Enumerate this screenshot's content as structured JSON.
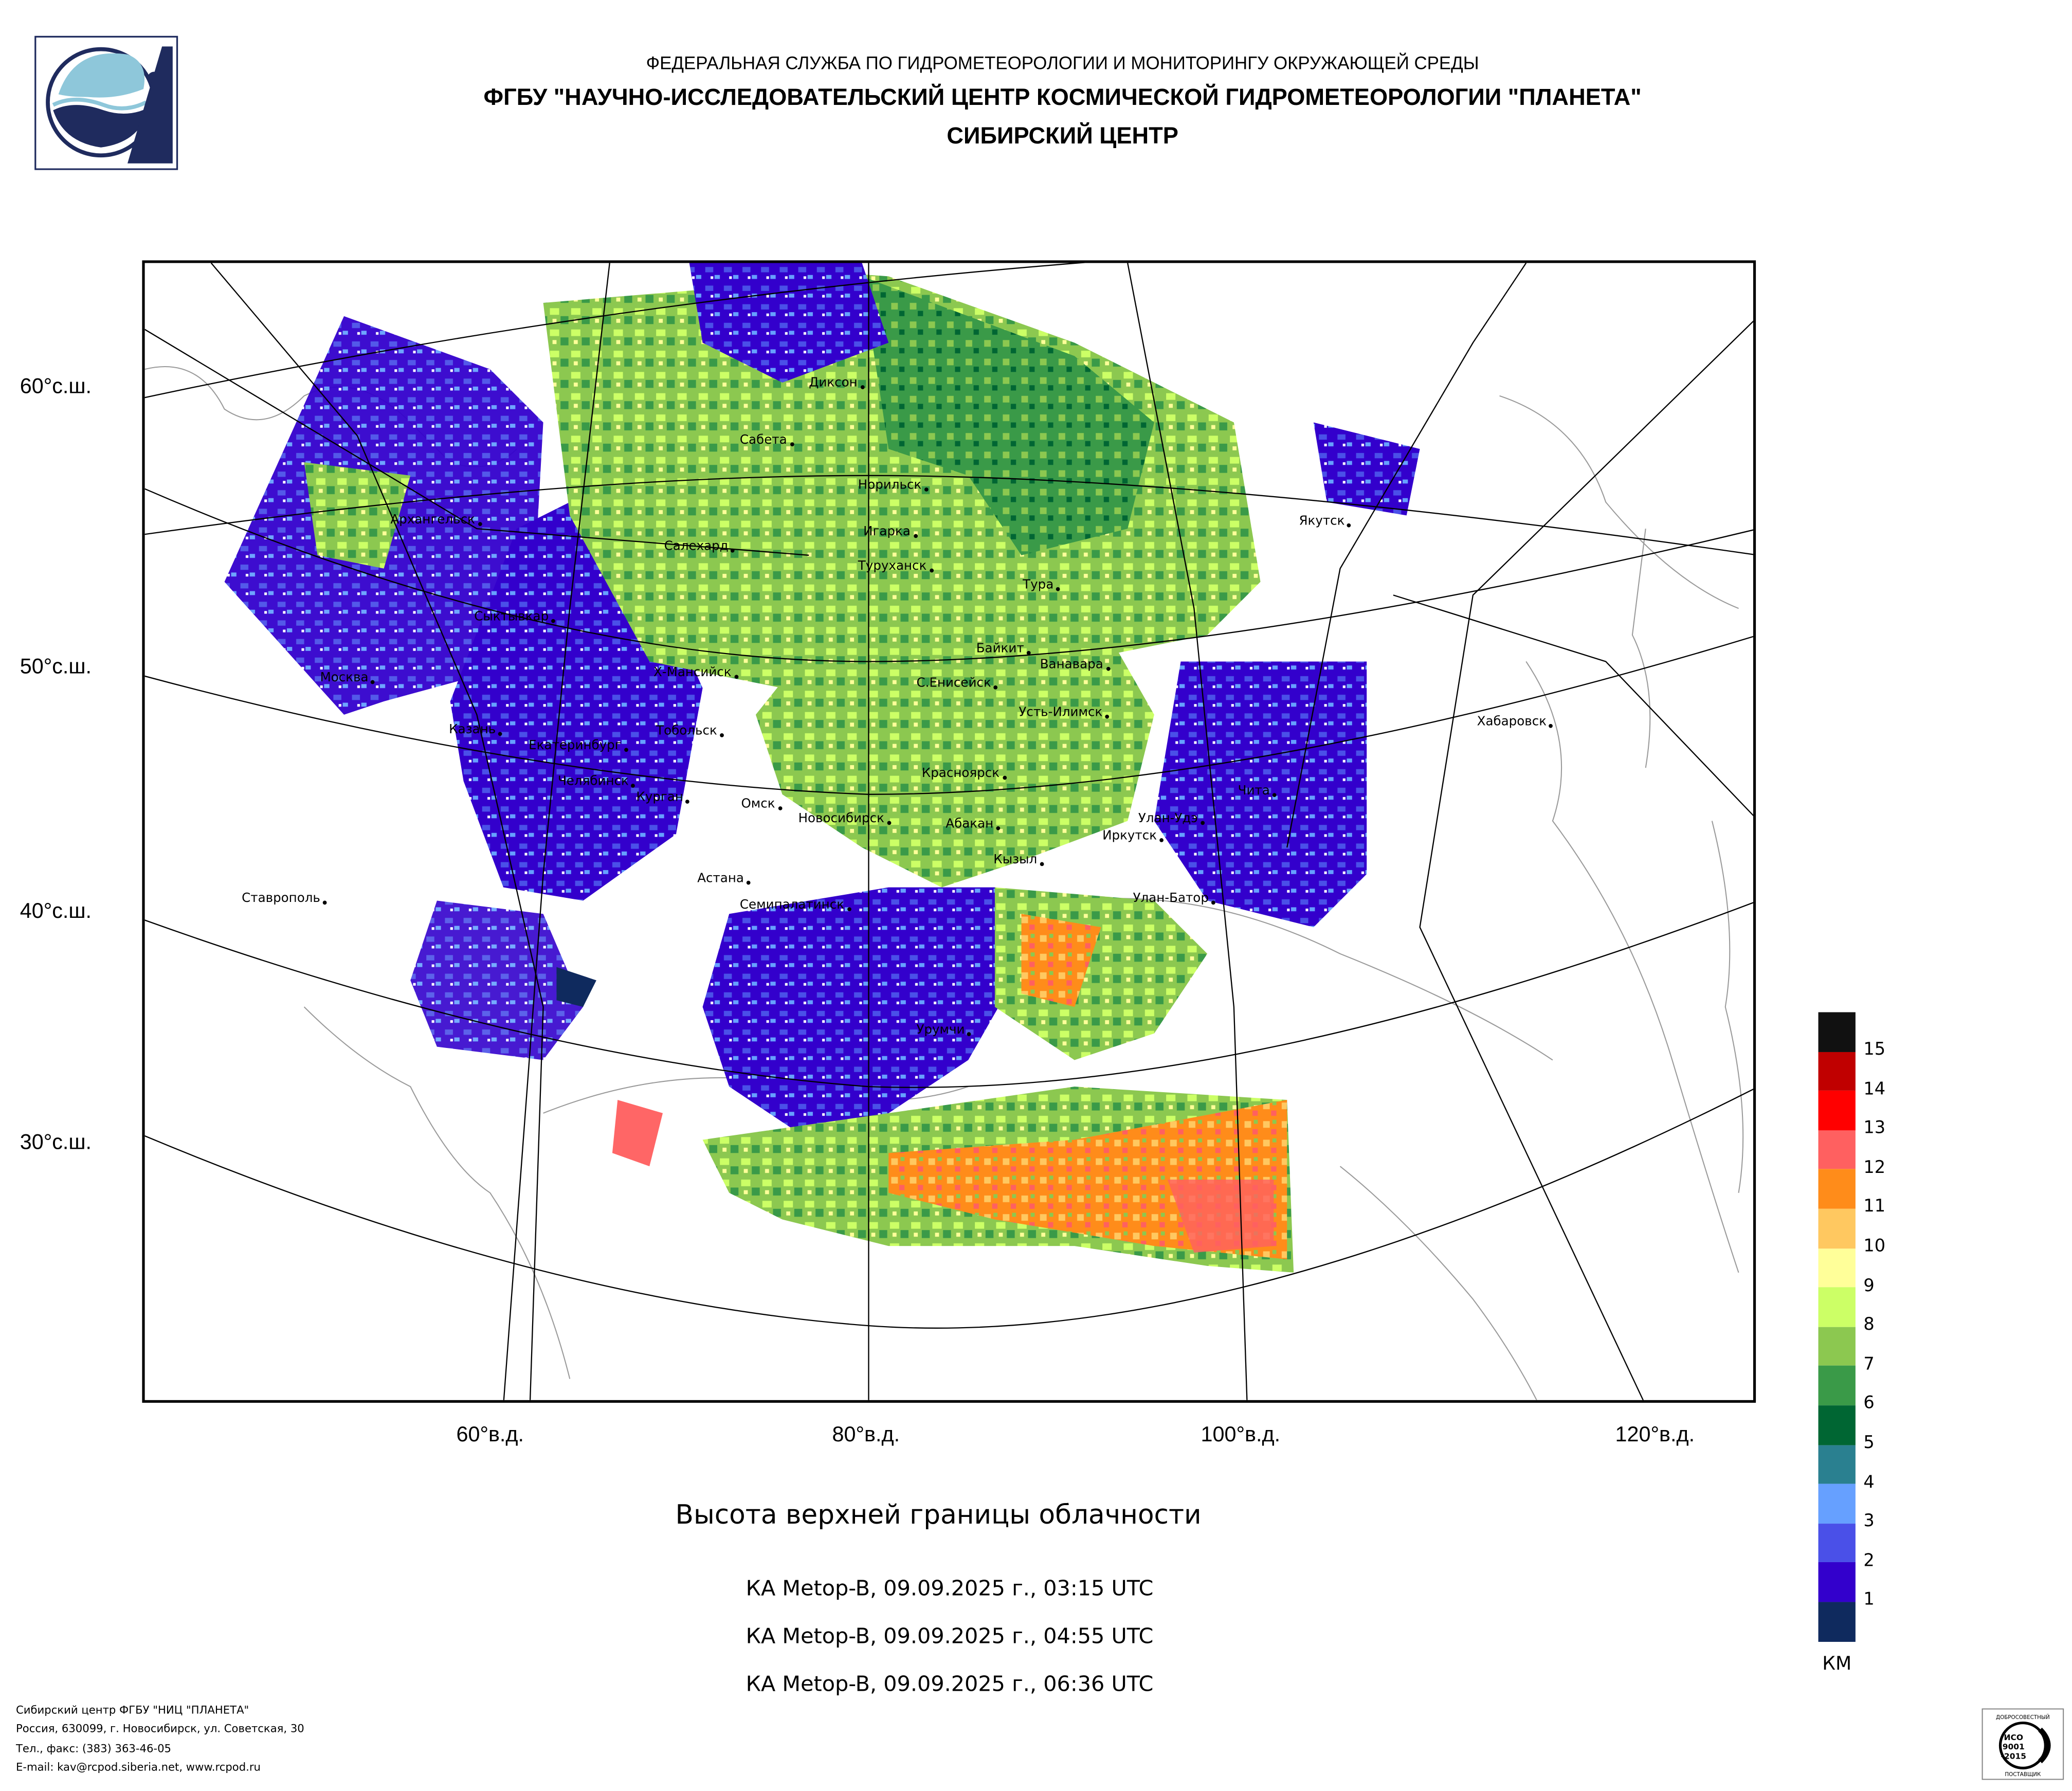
{
  "header": {
    "org": "ФЕДЕРАЛЬНАЯ СЛУЖБА ПО ГИДРОМЕТЕОРОЛОГИИ И МОНИТОРИНГУ ОКРУЖАЮЩЕЙ СРЕДЫ",
    "institution": "ФГБУ \"НАУЧНО-ИССЛЕДОВАТЕЛЬСКИЙ ЦЕНТР КОСМИЧЕСКОЙ ГИДРОМЕТЕОРОЛОГИИ \"ПЛАНЕТА\"",
    "center": "СИБИРСКИЙ ЦЕНТР"
  },
  "map": {
    "title": "Высота верхней границы облачности",
    "passes": [
      "КА Metop-B, 09.09.2025 г., 03:15 UTC",
      "КА Metop-B, 09.09.2025 г., 04:55 UTC",
      "КА Metop-B, 09.09.2025 г., 06:36 UTC"
    ],
    "lat_labels": [
      "60°с.ш.",
      "50°с.ш.",
      "40°с.ш.",
      "30°с.ш."
    ],
    "lon_labels": [
      "60°в.д.",
      "80°в.д.",
      "100°в.д.",
      "120°в.д."
    ],
    "cities": [
      "Диксон",
      "Сабета",
      "Норильск",
      "Игарка",
      "Салехард",
      "Туруханск",
      "Тура",
      "Архангельск",
      "Якутск",
      "Сыктывкар",
      "Байкит",
      "Ванавара",
      "Х-Мансийск",
      "С.Енисейск",
      "Москва",
      "Усть-Илимск",
      "Казань",
      "Тобольск",
      "Екатеринбург",
      "Хабаровск",
      "Челябинск",
      "Курган",
      "Красноярск",
      "Омск",
      "Новосибирск",
      "Чита",
      "Абакан",
      "Улан-Удэ",
      "Иркутск",
      "Кызыл",
      "Астана",
      "Ставрополь",
      "Улан-Батор",
      "Семипалатинск",
      "Урумчи"
    ]
  },
  "legend": {
    "unit": "КМ",
    "levels": [
      {
        "label": "15",
        "color": "#111111"
      },
      {
        "label": "14",
        "color": "#c00000"
      },
      {
        "label": "13",
        "color": "#ff0000"
      },
      {
        "label": "12",
        "color": "#ff6060"
      },
      {
        "label": "11",
        "color": "#ff8c1a"
      },
      {
        "label": "10",
        "color": "#ffc860"
      },
      {
        "label": "9",
        "color": "#ffff99"
      },
      {
        "label": "8",
        "color": "#ccff66"
      },
      {
        "label": "7",
        "color": "#8cc850"
      },
      {
        "label": "6",
        "color": "#3a9a48"
      },
      {
        "label": "5",
        "color": "#006633"
      },
      {
        "label": "4",
        "color": "#2a8090"
      },
      {
        "label": "3",
        "color": "#66a0ff"
      },
      {
        "label": "2",
        "color": "#4a50e8"
      },
      {
        "label": "1",
        "color": "#3300cc"
      },
      {
        "label": "",
        "color": "#0f2a5e"
      }
    ]
  },
  "footer": {
    "lines": [
      "Сибирский центр ФГБУ \"НИЦ \"ПЛАНЕТА\"",
      "Россия, 630099, г. Новосибирск, ул. Советская, 30",
      "Тел., факс: (383) 363-46-05",
      "E-mail: kav@rcpod.siberia.net, www.rcpod.ru"
    ]
  },
  "iso_badge": {
    "top": "ДОБРОСОВЕСТНЫЙ",
    "l1": "ИСО",
    "l2": "9001",
    "l3": "-2015",
    "bottom": "ПОСТАВЩИК"
  }
}
